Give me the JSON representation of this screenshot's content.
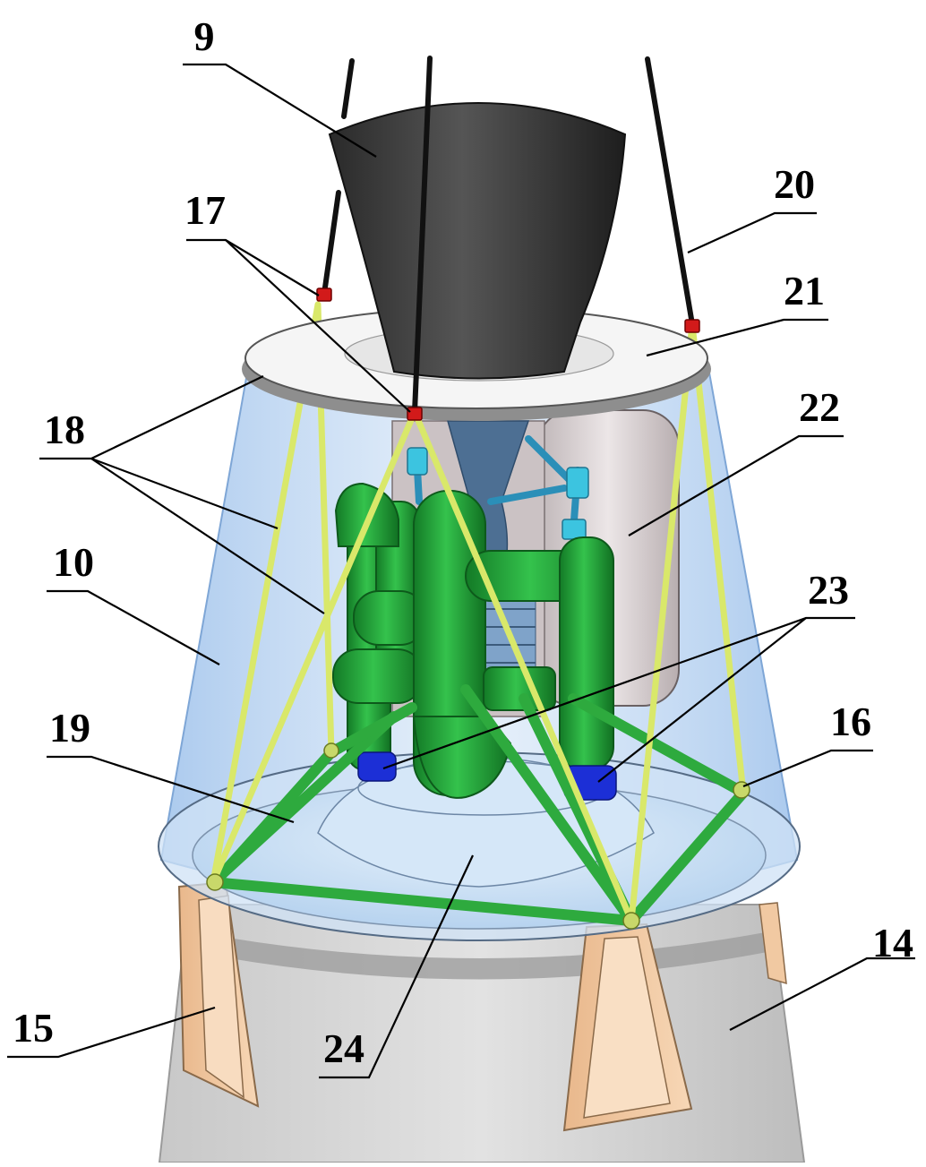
{
  "callouts": {
    "l9": "9",
    "l10": "10",
    "l14": "14",
    "l15": "15",
    "l16": "16",
    "l17": "17",
    "l18": "18",
    "l19": "19",
    "l20": "20",
    "l21": "21",
    "l22": "22",
    "l23": "23",
    "l24": "24"
  },
  "colors": {
    "nozzle": "#3a3a3a",
    "shroud": "#a9c9ee",
    "fairing": "#d4d4d4",
    "piping": "#22a33a",
    "struts": "#d9e86a",
    "strut_frame": "#2eaa3e",
    "tank": "#d8d0d2",
    "fins": "#f3c9a0",
    "feet": "#1c2fd6",
    "joints": "#d21a1a",
    "cables": "#111111"
  }
}
